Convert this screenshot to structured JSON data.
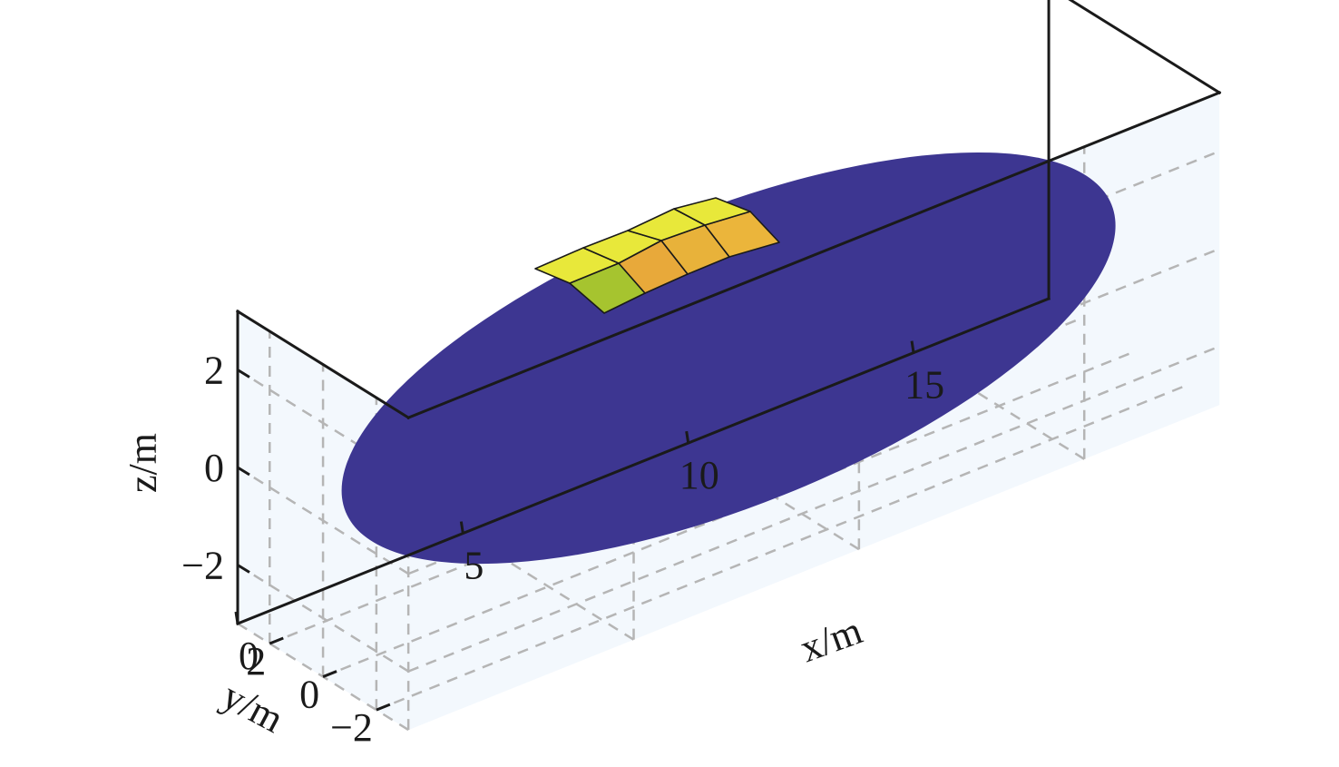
{
  "chart_data": {
    "type": "surface3d",
    "title": "",
    "axes": {
      "x": {
        "label": "x/m",
        "ticks": [
          0,
          5,
          10,
          15
        ],
        "range": [
          0,
          18
        ]
      },
      "y": {
        "label": "y/m",
        "ticks": [
          2,
          0,
          -2
        ],
        "range": [
          -3.2,
          3.2
        ]
      },
      "z": {
        "label": "z/m",
        "ticks": [
          2,
          0,
          -2
        ],
        "range": [
          -3.2,
          3.2
        ]
      }
    },
    "grid": true,
    "box": true,
    "objects": [
      {
        "name": "ellipse",
        "shape": "ellipse",
        "center": [
          9,
          0,
          0
        ],
        "semi_axes": [
          8.5,
          2.5
        ],
        "color": "#3d3691"
      },
      {
        "name": "patch-grid",
        "shape": "surface",
        "rows": 2,
        "cols": 4,
        "cell_colors": [
          [
            "#a6c42f",
            "#e8a93a",
            "#e8b23a",
            "#ebb53b"
          ],
          [
            "#e8e83a",
            "#e8e83a",
            "#e8e83a",
            "#e8e83a"
          ]
        ],
        "edge_color": "#1a1a1a"
      }
    ],
    "colors": {
      "ellipse": "#3d3691",
      "grid": "#b5b5b5",
      "box": "#1a1a1a",
      "pane": "#f3f8fd"
    }
  }
}
